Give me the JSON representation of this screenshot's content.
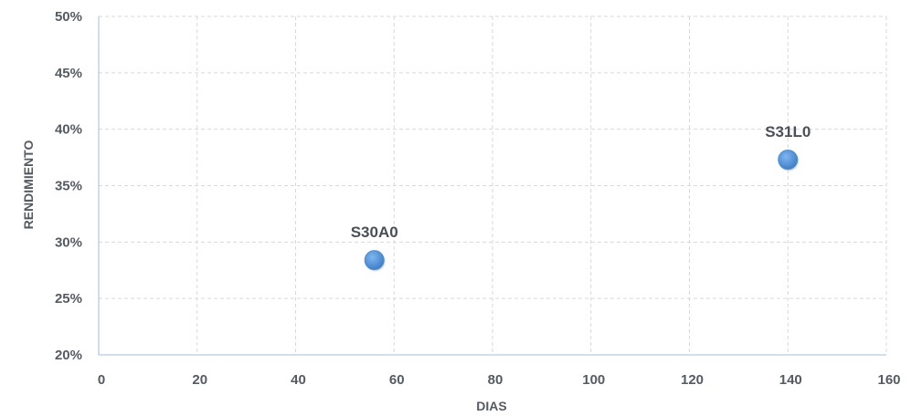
{
  "chart_data": {
    "type": "scatter",
    "xlabel": "DIAS",
    "ylabel": "RENDIMIENTO",
    "xlim": [
      0,
      160
    ],
    "ylim": [
      0.2,
      0.5
    ],
    "x_ticks": [
      0,
      20,
      40,
      60,
      80,
      100,
      120,
      140,
      160
    ],
    "y_ticks": [
      0.2,
      0.25,
      0.3,
      0.35,
      0.4,
      0.45,
      0.5
    ],
    "x_tick_labels": [
      "0",
      "20",
      "40",
      "60",
      "80",
      "100",
      "120",
      "140",
      "160"
    ],
    "y_tick_labels": [
      "20%",
      "25%",
      "30%",
      "35%",
      "40%",
      "45%",
      "50%"
    ],
    "grid": true,
    "marker_color": "#4a90d9",
    "points": [
      {
        "label": "S30A0",
        "x": 56,
        "y": 0.284
      },
      {
        "label": "S31L0",
        "x": 140,
        "y": 0.373
      }
    ]
  }
}
